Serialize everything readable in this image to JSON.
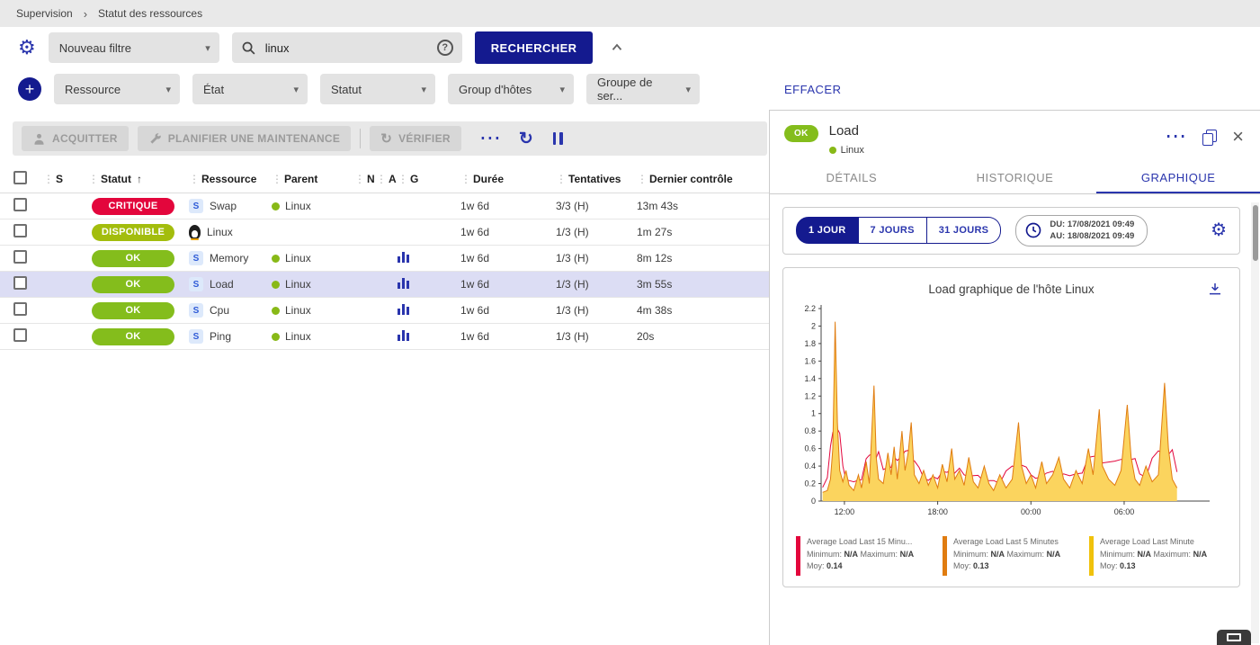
{
  "colors": {
    "accent": "#2a35ad",
    "accent_dark": "#141a8f",
    "critical": "#e3063c",
    "ok": "#84bd1c",
    "up": "#a3bd0d",
    "host_dot": "#88b917"
  },
  "icons": {
    "drag": "⋮",
    "service": "S",
    "sort_asc": "↑",
    "gear": "⚙",
    "caret": "▾",
    "plus": "+",
    "question": "?",
    "more": "⋯",
    "refresh": "↻",
    "close": "×",
    "breadcrumb_sep": "›"
  },
  "breadcrumb": {
    "items": [
      "Supervision",
      "Statut des ressources"
    ]
  },
  "filters": {
    "saved_filter_value": "Nouveau filtre",
    "search_value": "linux",
    "search_button": "RECHERCHER",
    "criteria": [
      "Ressource",
      "État",
      "Statut",
      "Group d'hôtes",
      "Groupe de ser..."
    ],
    "clear_button": "EFFACER"
  },
  "toolbar": {
    "acknowledge": "ACQUITTER",
    "downtime": "PLANIFIER UNE MAINTENANCE",
    "check": "VÉRIFIER"
  },
  "table": {
    "headers": {
      "s": "S",
      "status": "Statut",
      "resource": "Ressource",
      "parent": "Parent",
      "n": "N",
      "a": "A",
      "g": "G",
      "duration": "Durée",
      "tries": "Tentatives",
      "last_check": "Dernier contrôle"
    },
    "rows": [
      {
        "status": "CRITIQUE",
        "resource": "Swap",
        "parent": "Linux",
        "duration": "1w 6d",
        "tries": "3/3 (H)",
        "last_check": "13m 43s"
      },
      {
        "status": "DISPONIBLE",
        "resource": "Linux",
        "parent": "",
        "duration": "1w 6d",
        "tries": "1/3 (H)",
        "last_check": "1m 27s"
      },
      {
        "status": "OK",
        "resource": "Memory",
        "parent": "Linux",
        "duration": "1w 6d",
        "tries": "1/3 (H)",
        "last_check": "8m 12s"
      },
      {
        "status": "OK",
        "resource": "Load",
        "parent": "Linux",
        "duration": "1w 6d",
        "tries": "1/3 (H)",
        "last_check": "3m 55s"
      },
      {
        "status": "OK",
        "resource": "Cpu",
        "parent": "Linux",
        "duration": "1w 6d",
        "tries": "1/3 (H)",
        "last_check": "4m 38s"
      },
      {
        "status": "OK",
        "resource": "Ping",
        "parent": "Linux",
        "duration": "1w 6d",
        "tries": "1/3 (H)",
        "last_check": "20s"
      }
    ]
  },
  "panel": {
    "status": "OK",
    "title": "Load",
    "host": "Linux",
    "tabs": [
      "DÉTAILS",
      "HISTORIQUE",
      "GRAPHIQUE"
    ],
    "range_buttons": [
      "1 JOUR",
      "7 JOURS",
      "31 JOURS"
    ],
    "date_from": "DU: 17/08/2021 09:49",
    "date_to": "AU: 18/08/2021 09:49",
    "legend_labels": {
      "min": "Minimum:",
      "max": "Maximum:",
      "avg": "Moy:"
    }
  },
  "chart_data": {
    "type": "area",
    "title": "Load graphique de l'hôte Linux",
    "xlabel": "",
    "ylabel": "",
    "ylim": [
      0,
      2.2
    ],
    "y_tick_step": 0.2,
    "x_domain_hours": [
      10.5,
      35.5
    ],
    "x_ticks": [
      {
        "h": 12,
        "label": "12:00"
      },
      {
        "h": 18,
        "label": "18:00"
      },
      {
        "h": 24,
        "label": "00:00"
      },
      {
        "h": 30,
        "label": "06:00"
      }
    ],
    "series": [
      {
        "name": "Average Load Last 15 Minu...",
        "color": "#e3063c",
        "min": "N/A",
        "max": "N/A",
        "avg": "0.14",
        "render": "line-smooth"
      },
      {
        "name": "Average Load Last 5 Minutes",
        "color": "#e07c10",
        "min": "N/A",
        "max": "N/A",
        "avg": "0.13",
        "render": "line"
      },
      {
        "name": "Average Load Last Minute",
        "color": "#f0c20c",
        "fill": "#fbd45e",
        "min": "N/A",
        "max": "N/A",
        "avg": "0.13",
        "render": "area"
      }
    ],
    "points": [
      [
        10.6,
        0.1
      ],
      [
        10.9,
        0.12
      ],
      [
        11.1,
        0.25
      ],
      [
        11.25,
        0.6
      ],
      [
        11.4,
        2.05
      ],
      [
        11.55,
        0.9
      ],
      [
        11.7,
        0.35
      ],
      [
        11.9,
        0.22
      ],
      [
        12.1,
        0.35
      ],
      [
        12.3,
        0.18
      ],
      [
        12.6,
        0.12
      ],
      [
        12.9,
        0.3
      ],
      [
        13.1,
        0.15
      ],
      [
        13.4,
        0.45
      ],
      [
        13.6,
        0.2
      ],
      [
        13.9,
        1.32
      ],
      [
        14.05,
        0.5
      ],
      [
        14.2,
        0.25
      ],
      [
        14.5,
        0.2
      ],
      [
        14.8,
        0.55
      ],
      [
        15.0,
        0.3
      ],
      [
        15.2,
        0.62
      ],
      [
        15.4,
        0.25
      ],
      [
        15.7,
        0.8
      ],
      [
        15.9,
        0.35
      ],
      [
        16.1,
        0.55
      ],
      [
        16.3,
        0.9
      ],
      [
        16.5,
        0.3
      ],
      [
        16.8,
        0.2
      ],
      [
        17.1,
        0.35
      ],
      [
        17.4,
        0.18
      ],
      [
        17.7,
        0.3
      ],
      [
        18.0,
        0.15
      ],
      [
        18.3,
        0.42
      ],
      [
        18.6,
        0.22
      ],
      [
        18.9,
        0.6
      ],
      [
        19.1,
        0.25
      ],
      [
        19.4,
        0.35
      ],
      [
        19.7,
        0.18
      ],
      [
        20.0,
        0.5
      ],
      [
        20.3,
        0.22
      ],
      [
        20.6,
        0.15
      ],
      [
        21.0,
        0.4
      ],
      [
        21.3,
        0.2
      ],
      [
        21.6,
        0.12
      ],
      [
        22.0,
        0.3
      ],
      [
        22.4,
        0.15
      ],
      [
        22.8,
        0.25
      ],
      [
        23.2,
        0.9
      ],
      [
        23.4,
        0.4
      ],
      [
        23.7,
        0.2
      ],
      [
        24.0,
        0.3
      ],
      [
        24.3,
        0.15
      ],
      [
        24.7,
        0.45
      ],
      [
        25.0,
        0.2
      ],
      [
        25.4,
        0.3
      ],
      [
        25.8,
        0.5
      ],
      [
        26.1,
        0.25
      ],
      [
        26.5,
        0.15
      ],
      [
        26.9,
        0.35
      ],
      [
        27.3,
        0.2
      ],
      [
        27.7,
        0.6
      ],
      [
        28.0,
        0.3
      ],
      [
        28.4,
        1.05
      ],
      [
        28.6,
        0.4
      ],
      [
        29.0,
        0.25
      ],
      [
        29.4,
        0.18
      ],
      [
        29.8,
        0.35
      ],
      [
        30.2,
        1.1
      ],
      [
        30.45,
        0.5
      ],
      [
        30.7,
        0.25
      ],
      [
        31.0,
        0.18
      ],
      [
        31.4,
        0.4
      ],
      [
        31.8,
        0.22
      ],
      [
        32.2,
        0.3
      ],
      [
        32.6,
        1.35
      ],
      [
        32.85,
        0.6
      ],
      [
        33.1,
        0.25
      ],
      [
        33.4,
        0.15
      ]
    ]
  }
}
